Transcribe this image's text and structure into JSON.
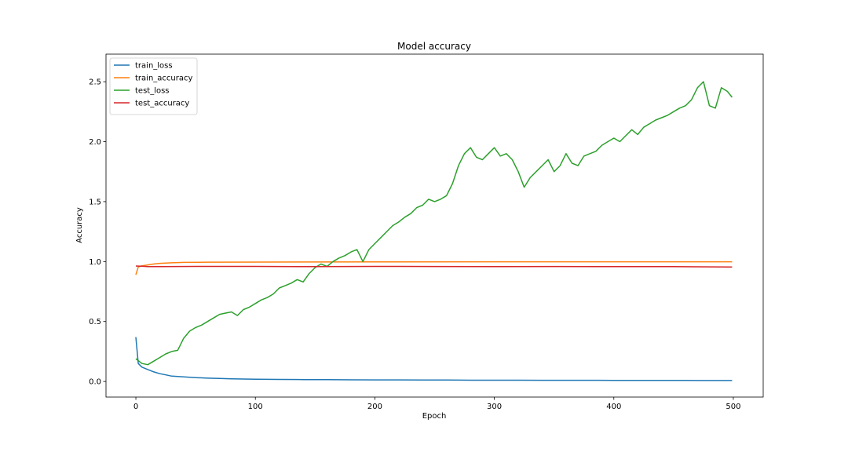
{
  "chart_data": {
    "type": "line",
    "title": "Model accuracy",
    "xlabel": "Epoch",
    "ylabel": "Accuracy",
    "xlim": [
      -25,
      525
    ],
    "ylim": [
      -0.13,
      2.73
    ],
    "xticks": [
      0,
      100,
      200,
      300,
      400,
      500
    ],
    "yticks": [
      0.0,
      0.5,
      1.0,
      1.5,
      2.0,
      2.5
    ],
    "xtick_labels": [
      "0",
      "100",
      "200",
      "300",
      "400",
      "500"
    ],
    "ytick_labels": [
      "0.0",
      "0.5",
      "1.0",
      "1.5",
      "2.0",
      "2.5"
    ],
    "grid": false,
    "legend_position": "upper-left",
    "series": [
      {
        "name": "train_loss",
        "color": "#1f77b4",
        "x": [
          0,
          2,
          5,
          10,
          15,
          20,
          25,
          30,
          40,
          50,
          60,
          70,
          80,
          100,
          120,
          140,
          160,
          180,
          200,
          220,
          240,
          260,
          280,
          300,
          320,
          340,
          360,
          380,
          400,
          420,
          440,
          460,
          480,
          490,
          499
        ],
        "y": [
          0.37,
          0.15,
          0.12,
          0.1,
          0.08,
          0.065,
          0.055,
          0.045,
          0.038,
          0.032,
          0.028,
          0.025,
          0.022,
          0.019,
          0.017,
          0.016,
          0.015,
          0.014,
          0.013,
          0.013,
          0.012,
          0.012,
          0.011,
          0.011,
          0.011,
          0.01,
          0.01,
          0.01,
          0.009,
          0.009,
          0.009,
          0.009,
          0.008,
          0.008,
          0.008
        ]
      },
      {
        "name": "train_accuracy",
        "color": "#ff7f0e",
        "x": [
          0,
          2,
          5,
          10,
          15,
          20,
          30,
          40,
          60,
          100,
          200,
          300,
          400,
          499
        ],
        "y": [
          0.89,
          0.955,
          0.965,
          0.972,
          0.98,
          0.985,
          0.99,
          0.993,
          0.995,
          0.996,
          0.997,
          0.998,
          0.998,
          0.998
        ]
      },
      {
        "name": "test_loss",
        "color": "#2ca02c",
        "x": [
          0,
          5,
          10,
          15,
          20,
          25,
          30,
          35,
          40,
          45,
          50,
          55,
          60,
          65,
          70,
          75,
          80,
          85,
          90,
          95,
          100,
          105,
          110,
          115,
          120,
          125,
          130,
          135,
          140,
          145,
          150,
          155,
          160,
          165,
          170,
          175,
          180,
          185,
          190,
          195,
          200,
          205,
          210,
          215,
          220,
          225,
          230,
          235,
          240,
          245,
          250,
          255,
          260,
          265,
          270,
          275,
          280,
          285,
          290,
          295,
          300,
          305,
          310,
          315,
          320,
          325,
          330,
          335,
          340,
          345,
          350,
          355,
          360,
          365,
          370,
          375,
          380,
          385,
          390,
          395,
          400,
          405,
          410,
          415,
          420,
          425,
          430,
          435,
          440,
          445,
          450,
          455,
          460,
          465,
          470,
          475,
          480,
          485,
          490,
          495,
          499
        ],
        "y": [
          0.19,
          0.15,
          0.14,
          0.17,
          0.2,
          0.23,
          0.25,
          0.26,
          0.36,
          0.42,
          0.45,
          0.47,
          0.5,
          0.53,
          0.56,
          0.57,
          0.58,
          0.55,
          0.6,
          0.62,
          0.65,
          0.68,
          0.7,
          0.73,
          0.78,
          0.8,
          0.82,
          0.85,
          0.83,
          0.9,
          0.95,
          0.98,
          0.96,
          1.0,
          1.03,
          1.05,
          1.08,
          1.1,
          1.0,
          1.1,
          1.15,
          1.2,
          1.25,
          1.3,
          1.33,
          1.37,
          1.4,
          1.45,
          1.47,
          1.52,
          1.5,
          1.52,
          1.55,
          1.65,
          1.8,
          1.9,
          1.95,
          1.87,
          1.85,
          1.9,
          1.95,
          1.88,
          1.9,
          1.85,
          1.75,
          1.62,
          1.7,
          1.75,
          1.8,
          1.85,
          1.75,
          1.8,
          1.9,
          1.82,
          1.8,
          1.88,
          1.9,
          1.92,
          1.97,
          2.0,
          2.03,
          2.0,
          2.05,
          2.1,
          2.06,
          2.12,
          2.15,
          2.18,
          2.2,
          2.22,
          2.25,
          2.28,
          2.3,
          2.35,
          2.45,
          2.5,
          2.3,
          2.28,
          2.45,
          2.42,
          2.37
        ]
      },
      {
        "name": "test_accuracy",
        "color": "#d62728",
        "x": [
          0,
          5,
          10,
          20,
          50,
          100,
          150,
          200,
          250,
          300,
          350,
          400,
          450,
          499
        ],
        "y": [
          0.963,
          0.961,
          0.958,
          0.958,
          0.96,
          0.96,
          0.958,
          0.96,
          0.959,
          0.958,
          0.959,
          0.958,
          0.958,
          0.955
        ]
      }
    ]
  }
}
